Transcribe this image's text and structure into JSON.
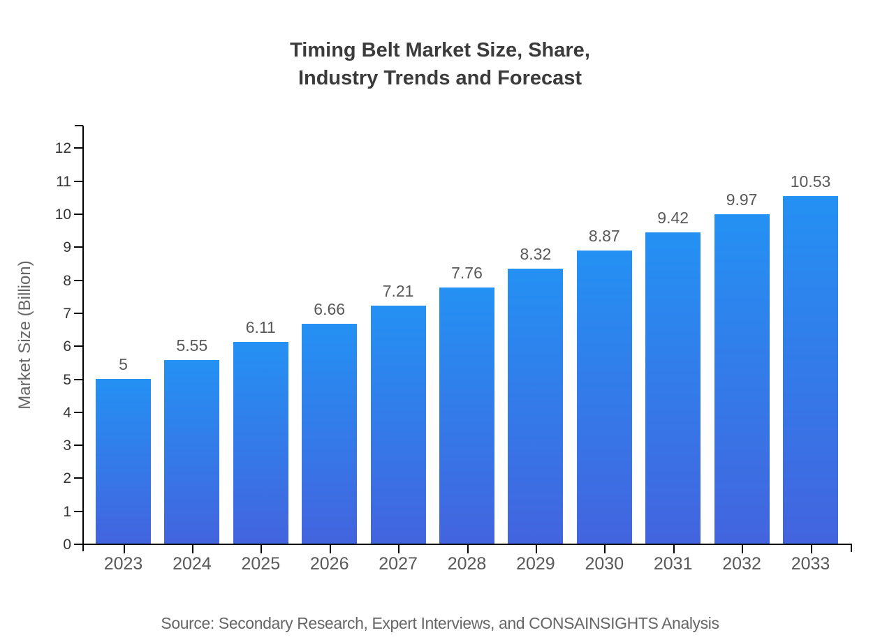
{
  "title": {
    "line1": "Timing Belt Market Size, Share,",
    "line2": "Industry Trends and Forecast"
  },
  "y_axis_label": "Market Size (Billion)",
  "source_note": "Source: Secondary Research, Expert Interviews, and CONSAINSIGHTS Analysis",
  "chart_data": {
    "type": "bar",
    "title": "Timing Belt Market Size, Share, Industry Trends and Forecast",
    "xlabel": "",
    "ylabel": "Market Size (Billion)",
    "categories": [
      "2023",
      "2024",
      "2025",
      "2026",
      "2027",
      "2028",
      "2029",
      "2030",
      "2031",
      "2032",
      "2033"
    ],
    "values": [
      5,
      5.55,
      6.11,
      6.66,
      7.21,
      7.76,
      8.32,
      8.87,
      9.42,
      9.97,
      10.53
    ],
    "value_labels": [
      "5",
      "5.55",
      "6.11",
      "6.66",
      "7.21",
      "7.76",
      "8.32",
      "8.87",
      "9.42",
      "9.97",
      "10.53"
    ],
    "yticks": [
      0,
      1,
      2,
      3,
      4,
      5,
      6,
      7,
      8,
      9,
      10,
      11,
      12
    ],
    "ylim": [
      0,
      12.7
    ],
    "grid": false,
    "legend": "none",
    "colors": {
      "bar_top": "#2491F3",
      "bar_bottom": "#4364DE",
      "axis": "#000000",
      "ytick_label": "#333333",
      "xtick_label": "#595959",
      "value_label": "#595959",
      "title": "#3B3B3B",
      "muted": "#666666"
    }
  }
}
